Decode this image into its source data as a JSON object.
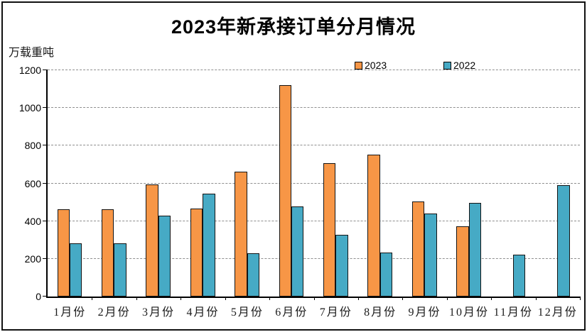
{
  "chart_data": {
    "type": "bar",
    "title": "2023年新承接订单分月情况",
    "ylabel": "万载重吨",
    "xlabel": "",
    "categories": [
      "1月份",
      "2月份",
      "3月份",
      "4月份",
      "5月份",
      "6月份",
      "7月份",
      "8月份",
      "9月份",
      "10月份",
      "11月份",
      "12月份"
    ],
    "series": [
      {
        "name": "2023",
        "color": "#F79646",
        "values": [
          461,
          464,
          596,
          467,
          662,
          1120,
          709,
          754,
          504,
          372,
          null,
          null
        ]
      },
      {
        "name": "2022",
        "color": "#46AAC5",
        "values": [
          283,
          284,
          428,
          545,
          229,
          478,
          326,
          235,
          441,
          497,
          221,
          592
        ]
      }
    ],
    "ylim": [
      0,
      1200
    ],
    "yticks": [
      0,
      200,
      400,
      600,
      800,
      1000,
      1200
    ],
    "grid": "horizontal-dashed",
    "legend_position": "top-center",
    "frame_color": "#111111"
  }
}
